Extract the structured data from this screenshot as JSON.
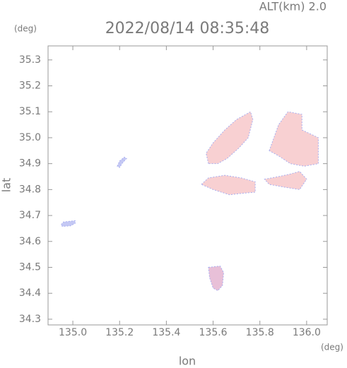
{
  "chart_data": {
    "type": "map",
    "title": "2022/08/14 08:35:48",
    "subtitle": "ALT(km)  2.0",
    "y_unit": "(deg)",
    "x_unit": "(deg)",
    "xlabel": "lon",
    "ylabel": "lat",
    "xlim": [
      134.894,
      136.088
    ],
    "ylim": [
      34.278,
      35.354
    ],
    "xticks": [
      {
        "value": 135.0,
        "label": "135.0"
      },
      135.2,
      135.4,
      135.6,
      135.8,
      {
        "value": 136.0,
        "label": "136.0"
      }
    ],
    "yticks": [
      34.3,
      34.4,
      34.5,
      34.6,
      34.7,
      34.8,
      34.9,
      {
        "value": 35.0,
        "label": "35.0"
      },
      35.1,
      35.2,
      35.3
    ],
    "regions": [
      {
        "color": "#c4c8f4",
        "x": [
          134.95,
          134.96,
          135.01,
          135.01,
          134.99,
          134.955
        ],
        "y": [
          34.665,
          34.675,
          34.68,
          34.67,
          34.66,
          34.658
        ]
      },
      {
        "color": "#c4c8f4",
        "x": [
          135.19,
          135.2,
          135.22,
          135.23,
          135.21,
          135.2
        ],
        "y": [
          34.89,
          34.91,
          34.925,
          34.92,
          34.9,
          34.885
        ]
      },
      {
        "color": "#f8d0d2",
        "x": [
          135.58,
          135.57,
          135.6,
          135.65,
          135.7,
          135.76,
          135.77,
          135.75,
          135.71,
          135.66,
          135.62
        ],
        "y": [
          34.9,
          34.94,
          34.98,
          35.03,
          35.07,
          35.1,
          35.07,
          35.0,
          34.96,
          34.92,
          34.9
        ]
      },
      {
        "color": "#f8d0d2",
        "x": [
          135.55,
          135.58,
          135.65,
          135.72,
          135.78,
          135.78,
          135.72,
          135.67,
          135.6
        ],
        "y": [
          34.82,
          34.845,
          34.855,
          34.845,
          34.83,
          34.79,
          34.785,
          34.78,
          34.8
        ]
      },
      {
        "color": "#f8d0d2",
        "x": [
          135.82,
          135.88,
          135.93,
          135.97,
          136.0,
          135.97,
          135.9,
          135.84
        ],
        "y": [
          34.84,
          34.85,
          34.86,
          34.87,
          34.84,
          34.8,
          34.81,
          34.82
        ]
      },
      {
        "color": "#f8d0d2",
        "x": [
          135.84,
          135.86,
          135.88,
          135.92,
          135.98,
          135.98,
          136.05,
          136.05,
          135.99,
          135.93,
          135.88
        ],
        "y": [
          34.95,
          35.0,
          35.05,
          35.1,
          35.09,
          35.03,
          35.0,
          34.9,
          34.89,
          34.9,
          34.93
        ]
      },
      {
        "color": "#e8c0d8",
        "x": [
          135.58,
          135.63,
          135.645,
          135.64,
          135.62,
          135.6,
          135.585
        ],
        "y": [
          34.5,
          34.505,
          34.48,
          34.43,
          34.41,
          34.42,
          34.46
        ]
      }
    ]
  }
}
